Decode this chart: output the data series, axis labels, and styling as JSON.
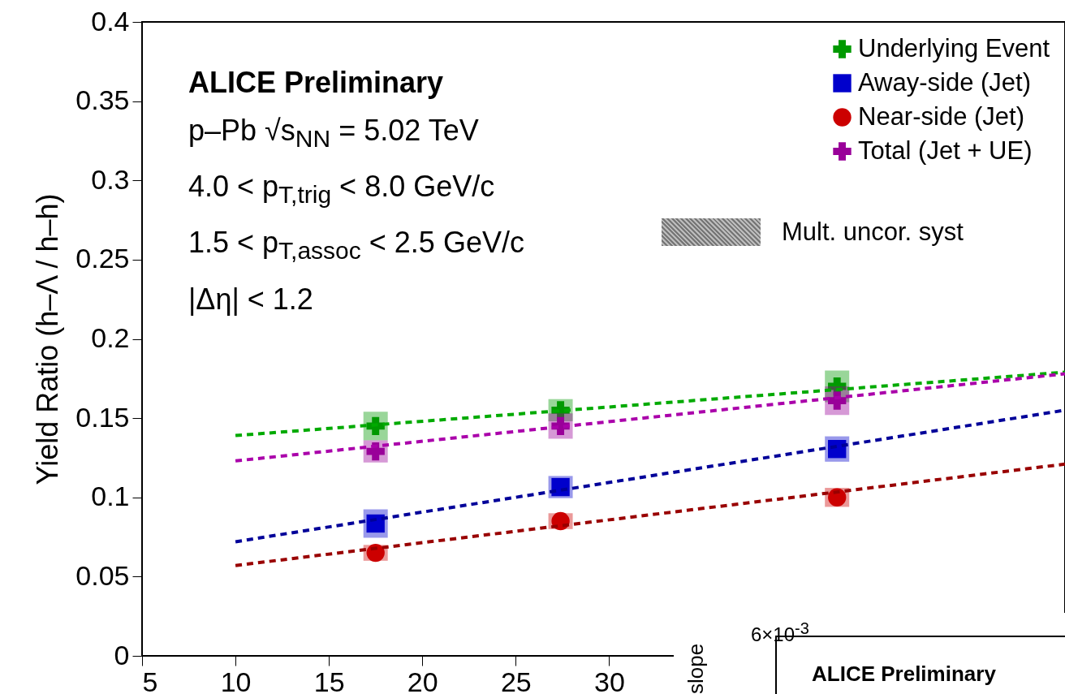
{
  "chart_data": [
    {
      "type": "scatter",
      "ylabel": "Yield Ratio (h–Λ / h–h)",
      "xlim": [
        5,
        54.4
      ],
      "ylim": [
        0,
        0.4
      ],
      "xticks": [
        5,
        10,
        15,
        20,
        25,
        30
      ],
      "yticks": [
        0,
        0.05,
        0.1,
        0.15,
        0.2,
        0.25,
        0.3,
        0.35,
        0.4
      ],
      "grid": false,
      "legend": "top right",
      "annotations": [
        "ALICE Preliminary",
        "p–Pb √s$_{NN}$ = 5.02 TeV",
        "4.0 < p$_{T,trig}$ < 8.0 GeV/c",
        "1.5 < p$_{T,assoc}$ < 2.5 GeV/c",
        "|Δη| < 1.2",
        "Mult. uncor. syst"
      ],
      "series": [
        {
          "name": "Underlying Event",
          "color": "#009900",
          "marker": "cross",
          "x": [
            17.5,
            27.4,
            42.2
          ],
          "values": [
            0.145,
            0.155,
            0.17
          ],
          "errors": [
            0.009,
            0.007,
            0.01
          ]
        },
        {
          "name": "Away-side (Jet)",
          "color": "#0000cc",
          "marker": "square",
          "x": [
            17.5,
            27.4,
            42.2
          ],
          "values": [
            0.0835,
            0.1065,
            0.1305
          ],
          "errors": [
            0.009,
            0.007,
            0.008
          ]
        },
        {
          "name": "Near-side (Jet)",
          "color": "#cc0000",
          "marker": "circle",
          "x": [
            17.5,
            27.4,
            42.2
          ],
          "values": [
            0.065,
            0.085,
            0.1
          ],
          "errors": [
            0.005,
            0.005,
            0.006
          ]
        },
        {
          "name": "Total (Jet + UE)",
          "color": "#990099",
          "marker": "cross",
          "x": [
            17.5,
            27.4,
            42.2
          ],
          "values": [
            0.129,
            0.145,
            0.161
          ],
          "errors": [
            0.007,
            0.008,
            0.009
          ]
        },
        {
          "type": "line",
          "color": "#00aa00",
          "line_style": "dashed",
          "x": [
            10,
            54.4
          ],
          "values": [
            0.139,
            0.179
          ]
        },
        {
          "type": "line",
          "color": "#aa00aa",
          "line_style": "dashed",
          "x": [
            10,
            54.4
          ],
          "values": [
            0.123,
            0.178
          ]
        },
        {
          "type": "line",
          "color": "#000099",
          "line_style": "dashed",
          "x": [
            10,
            54.4
          ],
          "values": [
            0.072,
            0.155
          ]
        },
        {
          "type": "line",
          "color": "#990000",
          "line_style": "dashed",
          "x": [
            10,
            54.4
          ],
          "values": [
            0.057,
            0.121
          ]
        }
      ]
    },
    {
      "type": "other",
      "title": "ALICE Preliminary",
      "ylabel": "slope",
      "annotations": [
        "6×10$^{-3}$"
      ]
    }
  ]
}
